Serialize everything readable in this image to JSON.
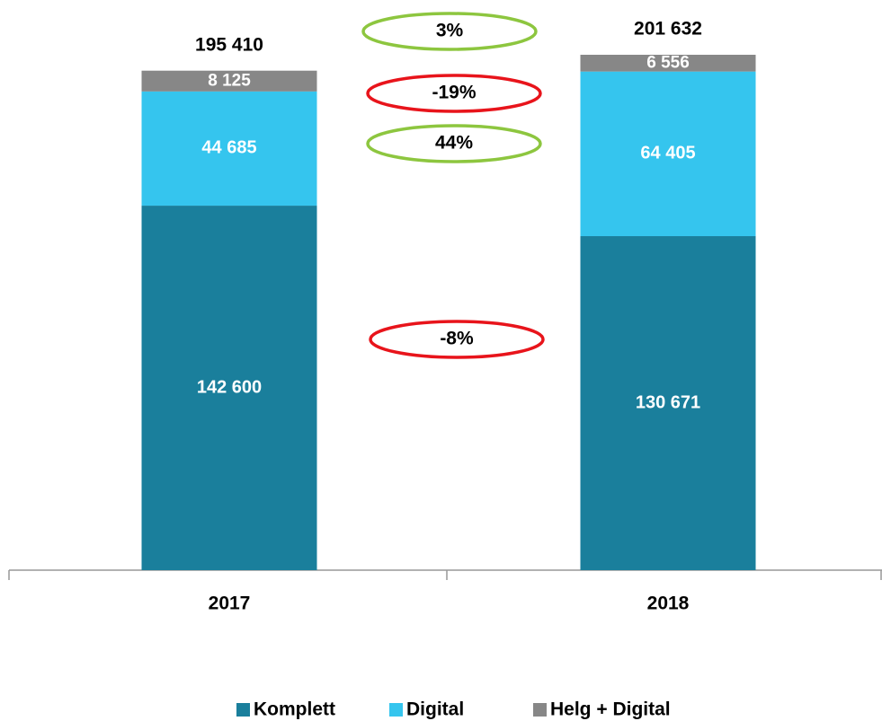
{
  "chart_data": {
    "type": "stacked-bar",
    "categories": [
      "2017",
      "2018"
    ],
    "series": [
      {
        "name": "Komplett",
        "color": "#1a7f9c",
        "values": [
          142600,
          130671
        ],
        "value_labels": [
          "142 600",
          "130 671"
        ]
      },
      {
        "name": "Digital",
        "color": "#35c5ee",
        "values": [
          44685,
          64405
        ],
        "value_labels": [
          "44 685",
          "64 405"
        ]
      },
      {
        "name": "Helg + Digital",
        "color": "#878787",
        "values": [
          8125,
          6556
        ],
        "value_labels": [
          "8 125",
          "6 556"
        ]
      }
    ],
    "totals": {
      "values": [
        195410,
        201632
      ],
      "value_labels": [
        "195 410",
        "201 632"
      ]
    },
    "annotations": [
      {
        "text": "3%",
        "color": "#8dc63f"
      },
      {
        "text": "-19%",
        "color": "#e8141b"
      },
      {
        "text": "44%",
        "color": "#8dc63f"
      },
      {
        "text": "-8%",
        "color": "#e8141b"
      }
    ],
    "legend": "bottom"
  }
}
